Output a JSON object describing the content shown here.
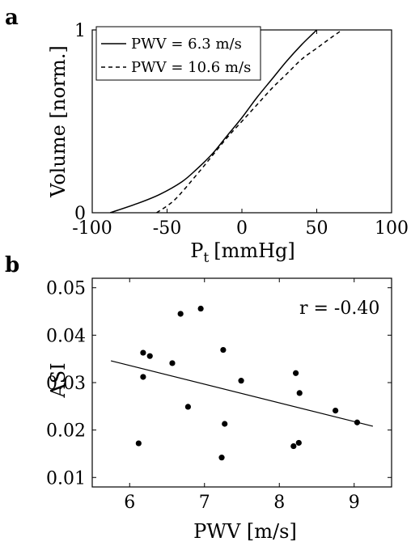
{
  "chart_data": [
    {
      "panel_label": "a",
      "type": "line",
      "xlabel": "P",
      "xlabel_sub": "t",
      "xlabel_unit": "[mmHg]",
      "ylabel": "Volume [norm.]",
      "xlim": [
        -100,
        100
      ],
      "ylim": [
        0,
        1
      ],
      "xticks": [
        -100,
        -50,
        0,
        50,
        100
      ],
      "yticks": [
        0,
        1
      ],
      "legend_position": "top-left",
      "series": [
        {
          "name": "PWV = 6.3 m/s",
          "style": "solid",
          "x": [
            -88,
            -70,
            -55,
            -40,
            -30,
            -20,
            -10,
            0,
            10,
            20,
            30,
            40,
            50
          ],
          "y": [
            0.0,
            0.05,
            0.1,
            0.17,
            0.24,
            0.32,
            0.42,
            0.52,
            0.63,
            0.73,
            0.83,
            0.92,
            1.0
          ]
        },
        {
          "name": "PWV = 10.6 m/s",
          "style": "dashed",
          "x": [
            -57,
            -45,
            -30,
            -20,
            -10,
            0,
            10,
            20,
            30,
            40,
            50,
            60,
            67
          ],
          "y": [
            0.0,
            0.07,
            0.21,
            0.31,
            0.41,
            0.5,
            0.59,
            0.68,
            0.76,
            0.84,
            0.9,
            0.96,
            1.0
          ]
        }
      ]
    },
    {
      "panel_label": "b",
      "type": "scatter",
      "xlabel": "PWV [m/s]",
      "ylabel": "ASI",
      "xlim": [
        5.5,
        9.5
      ],
      "ylim": [
        0.008,
        0.052
      ],
      "xticks": [
        6,
        7,
        8,
        9
      ],
      "yticks": [
        "0.01",
        "0.02",
        "0.03",
        "0.04",
        "0.05"
      ],
      "annotation": "r = -0.40",
      "points": [
        {
          "x": 6.12,
          "y": 0.0172
        },
        {
          "x": 6.18,
          "y": 0.0312
        },
        {
          "x": 6.18,
          "y": 0.0363
        },
        {
          "x": 6.27,
          "y": 0.0356
        },
        {
          "x": 6.57,
          "y": 0.0341
        },
        {
          "x": 6.68,
          "y": 0.0445
        },
        {
          "x": 6.78,
          "y": 0.0249
        },
        {
          "x": 6.95,
          "y": 0.0456
        },
        {
          "x": 7.23,
          "y": 0.0142
        },
        {
          "x": 7.25,
          "y": 0.0369
        },
        {
          "x": 7.27,
          "y": 0.0213
        },
        {
          "x": 7.49,
          "y": 0.0304
        },
        {
          "x": 8.19,
          "y": 0.0166
        },
        {
          "x": 8.22,
          "y": 0.032
        },
        {
          "x": 8.26,
          "y": 0.0173
        },
        {
          "x": 8.27,
          "y": 0.0278
        },
        {
          "x": 8.75,
          "y": 0.0241
        },
        {
          "x": 9.04,
          "y": 0.0216
        }
      ],
      "fit_line": {
        "x": [
          5.75,
          9.25
        ],
        "y": [
          0.0346,
          0.0208
        ]
      }
    }
  ]
}
